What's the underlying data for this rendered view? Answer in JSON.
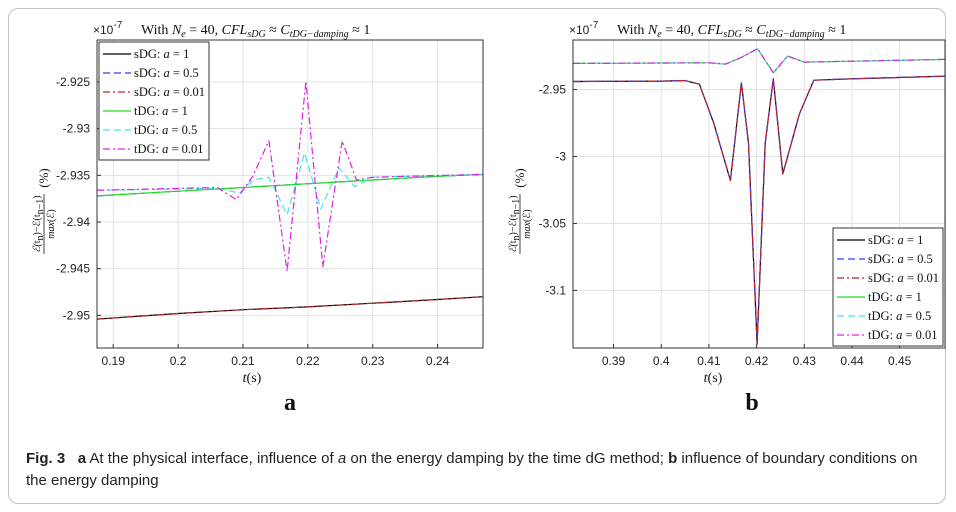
{
  "caption": {
    "label": "Fig. 3",
    "a_letter": "a",
    "a_text": "At the physical interface, influence of ",
    "a_var": "a",
    "a_text2": " on the energy damping by the time dG method;",
    "b_letter": "b",
    "b_text": "influence of boundary conditions on the energy damping"
  },
  "colors": {
    "sDG_a1": "#000000",
    "sDG_a05": "#2b3cff",
    "sDG_a001": "#c8202a",
    "tDG_a1": "#22dd22",
    "tDG_a05": "#3fe6f0",
    "tDG_a001": "#e020e0"
  },
  "chart_data": [
    {
      "panel": "a",
      "type": "line",
      "title": "With N_e = 40, CFL_sDG ≈ C_tDG−damping ≈ 1",
      "exponent": "×10^-7",
      "xlabel": "t(s)",
      "ylabel": "(ℰ(t_n) − ℰ(t_n−1)) / max(ℰ) (%)",
      "xlim": [
        0.1875,
        0.247
      ],
      "ylim": [
        -2.9535,
        -2.9205
      ],
      "xticks": [
        0.19,
        0.2,
        0.21,
        0.22,
        0.23,
        0.24
      ],
      "yticks": [
        -2.925,
        -2.93,
        -2.935,
        -2.94,
        -2.945,
        -2.95
      ],
      "grid": true,
      "legend": "top-left",
      "series": [
        {
          "name": "sDG: a = 1",
          "style": "solid",
          "color_key": "sDG_a1",
          "x": [
            0.1875,
            0.2,
            0.21,
            0.22,
            0.23,
            0.24,
            0.247
          ],
          "y": [
            -2.9504,
            -2.9498,
            -2.9494,
            -2.9491,
            -2.9487,
            -2.9483,
            -2.948
          ]
        },
        {
          "name": "sDG: a = 0.5",
          "style": "dashed",
          "color_key": "sDG_a05",
          "x": [
            0.1875,
            0.2,
            0.21,
            0.22,
            0.23,
            0.24,
            0.247
          ],
          "y": [
            -2.9372,
            -2.9367,
            -2.9363,
            -2.9359,
            -2.9355,
            -2.9351,
            -2.9349
          ]
        },
        {
          "name": "sDG: a = 0.01",
          "style": "dashdot",
          "color_key": "sDG_a001",
          "x": [
            0.1875,
            0.2,
            0.21,
            0.22,
            0.23,
            0.24,
            0.247
          ],
          "y": [
            -2.9504,
            -2.9498,
            -2.9494,
            -2.9491,
            -2.9487,
            -2.9483,
            -2.948
          ]
        },
        {
          "name": "tDG: a = 1",
          "style": "solid",
          "color_key": "tDG_a1",
          "x": [
            0.1875,
            0.2,
            0.21,
            0.22,
            0.23,
            0.24,
            0.247
          ],
          "y": [
            -2.9372,
            -2.9367,
            -2.9363,
            -2.9359,
            -2.9355,
            -2.9351,
            -2.9349
          ]
        },
        {
          "name": "tDG: a = 0.5",
          "style": "dashed",
          "color_key": "tDG_a05",
          "x": [
            0.1875,
            0.206,
            0.2095,
            0.2115,
            0.214,
            0.2168,
            0.2195,
            0.222,
            0.2248,
            0.2272,
            0.23,
            0.247
          ],
          "y": [
            -2.9366,
            -2.9364,
            -2.9369,
            -2.9355,
            -2.9352,
            -2.9392,
            -2.9326,
            -2.9386,
            -2.9342,
            -2.9362,
            -2.9352,
            -2.9349
          ]
        },
        {
          "name": "tDG: a = 0.01",
          "style": "dashdot",
          "color_key": "tDG_a001",
          "x": [
            0.1875,
            0.206,
            0.209,
            0.2115,
            0.214,
            0.2168,
            0.2197,
            0.2223,
            0.2253,
            0.2275,
            0.23,
            0.247
          ],
          "y": [
            -2.9366,
            -2.9363,
            -2.9376,
            -2.9351,
            -2.9313,
            -2.9453,
            -2.9249,
            -2.9448,
            -2.9313,
            -2.9355,
            -2.9352,
            -2.9349
          ]
        }
      ]
    },
    {
      "panel": "b",
      "type": "line",
      "title": "With N_e = 40, CFL_sDG ≈ C_tDG−damping ≈ 1",
      "exponent": "×10^-7",
      "xlabel": "t(s)",
      "ylabel": "(ℰ(t_n) − ℰ(t_n−1)) / max(ℰ) (%)",
      "xlim": [
        0.3815,
        0.4595
      ],
      "ylim": [
        -3.143,
        -2.913
      ],
      "xticks": [
        0.39,
        0.4,
        0.41,
        0.42,
        0.43,
        0.44,
        0.45
      ],
      "yticks": [
        -2.95,
        -3,
        -3.05,
        -3.1
      ],
      "grid": true,
      "legend": "bottom-right",
      "series": [
        {
          "name": "sDG: a = 1",
          "style": "solid",
          "color_key": "sDG_a1",
          "x": [
            0.3815,
            0.4,
            0.405,
            0.408,
            0.411,
            0.4145,
            0.4168,
            0.4183,
            0.4201,
            0.4218,
            0.4235,
            0.4255,
            0.429,
            0.432,
            0.44,
            0.4595
          ],
          "y": [
            -2.944,
            -2.9437,
            -2.9433,
            -2.946,
            -2.975,
            -3.018,
            -2.945,
            -2.99,
            -3.14,
            -2.99,
            -2.942,
            -3.013,
            -2.968,
            -2.943,
            -2.942,
            -2.94
          ]
        },
        {
          "name": "sDG: a = 0.5",
          "style": "dashed",
          "color_key": "sDG_a05",
          "x": [
            0.3815,
            0.4,
            0.405,
            0.408,
            0.411,
            0.4145,
            0.4168,
            0.4183,
            0.4201,
            0.4218,
            0.4235,
            0.4255,
            0.429,
            0.432,
            0.44,
            0.4595
          ],
          "y": [
            -2.944,
            -2.9437,
            -2.9433,
            -2.946,
            -2.975,
            -3.018,
            -2.945,
            -2.99,
            -3.14,
            -2.99,
            -2.942,
            -3.013,
            -2.968,
            -2.943,
            -2.942,
            -2.94
          ]
        },
        {
          "name": "sDG: a = 0.01",
          "style": "dashdot",
          "color_key": "sDG_a001",
          "x": [
            0.3815,
            0.4,
            0.405,
            0.408,
            0.411,
            0.4145,
            0.4168,
            0.4183,
            0.4201,
            0.4218,
            0.4235,
            0.4255,
            0.429,
            0.432,
            0.44,
            0.4595
          ],
          "y": [
            -2.944,
            -2.9437,
            -2.9433,
            -2.946,
            -2.975,
            -3.018,
            -2.945,
            -2.99,
            -3.14,
            -2.99,
            -2.942,
            -3.013,
            -2.968,
            -2.943,
            -2.942,
            -2.94
          ]
        },
        {
          "name": "tDG: a = 1",
          "style": "solid",
          "color_key": "tDG_a1",
          "x": [
            0.3815,
            0.41,
            0.4135,
            0.4165,
            0.4202,
            0.4235,
            0.4265,
            0.43,
            0.4595
          ],
          "y": [
            -2.9305,
            -2.93,
            -2.931,
            -2.9265,
            -2.9195,
            -2.9375,
            -2.925,
            -2.9295,
            -2.9275
          ]
        },
        {
          "name": "tDG: a = 0.5",
          "style": "dashed",
          "color_key": "tDG_a05",
          "x": [
            0.3815,
            0.41,
            0.4135,
            0.4165,
            0.4202,
            0.4235,
            0.4265,
            0.43,
            0.4595
          ],
          "y": [
            -2.9305,
            -2.93,
            -2.931,
            -2.9265,
            -2.9195,
            -2.9375,
            -2.925,
            -2.9295,
            -2.9275
          ]
        },
        {
          "name": "tDG: a = 0.01",
          "style": "dashdot",
          "color_key": "tDG_a001",
          "x": [
            0.3815,
            0.41,
            0.4135,
            0.4165,
            0.4202,
            0.4235,
            0.4265,
            0.43,
            0.4595
          ],
          "y": [
            -2.9305,
            -2.93,
            -2.931,
            -2.9265,
            -2.9195,
            -2.9375,
            -2.925,
            -2.9295,
            -2.9275
          ]
        }
      ]
    }
  ]
}
